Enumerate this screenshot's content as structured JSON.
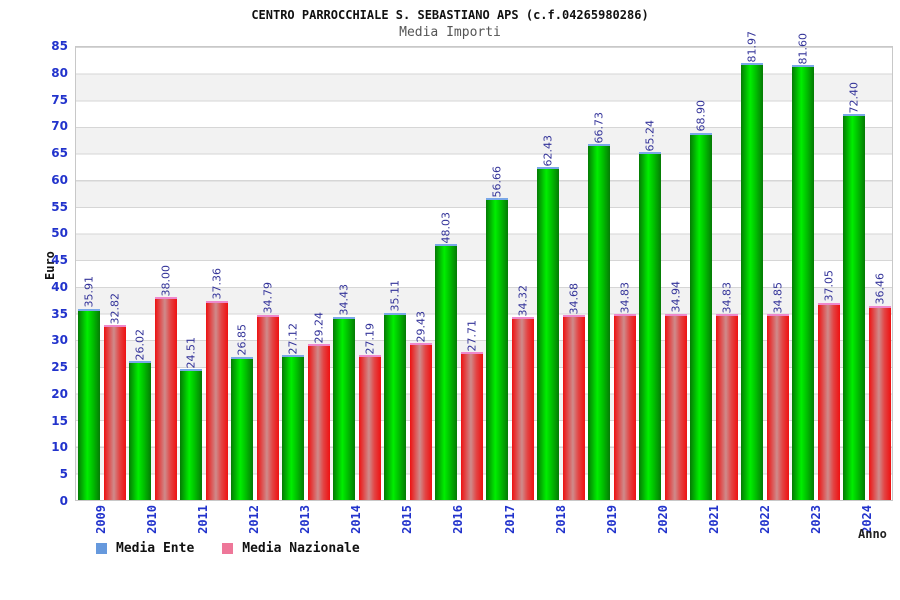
{
  "header": {
    "title": "CENTRO PARROCCHIALE S. SEBASTIANO APS (c.f.04265980286)",
    "subtitle": "Media Importi"
  },
  "chart_data": {
    "type": "bar",
    "title": "Media Importi",
    "categories": [
      "2009",
      "2010",
      "2011",
      "2012",
      "2013",
      "2014",
      "2015",
      "2016",
      "2017",
      "2018",
      "2019",
      "2020",
      "2021",
      "2022",
      "2023",
      "2024"
    ],
    "series": [
      {
        "name": "Media Ente",
        "values": [
          35.91,
          26.02,
          24.51,
          26.85,
          27.12,
          34.43,
          35.11,
          48.03,
          56.66,
          62.43,
          66.73,
          65.24,
          68.9,
          81.97,
          81.6,
          72.4
        ],
        "labels": [
          "35.91",
          "26.02",
          "24.51",
          "26.85",
          "27.12",
          "34.43",
          "35.11",
          "48.03",
          "56.66",
          "62.43",
          "66.73",
          "65.24",
          "68.90",
          "81.97",
          "81.60",
          "72.40"
        ]
      },
      {
        "name": "Media Nazionale",
        "values": [
          32.82,
          38.0,
          37.36,
          34.79,
          29.24,
          27.19,
          29.43,
          27.71,
          34.32,
          34.68,
          34.83,
          34.94,
          34.83,
          34.85,
          37.05,
          36.46
        ],
        "labels": [
          "32.82",
          "38.00",
          "37.36",
          "34.79",
          "29.24",
          "27.19",
          "29.43",
          "27.71",
          "34.32",
          "34.68",
          "34.83",
          "34.94",
          "34.83",
          "34.85",
          "37.05",
          "36.46"
        ]
      }
    ],
    "xlabel": "Anno",
    "ylabel": "Euro",
    "ylim": [
      0,
      85
    ],
    "ytick_step": 5,
    "grid": "horizontal-bands",
    "legend_position": "bottom-left"
  },
  "colors": {
    "tick_label": "#2233cc",
    "value_label": "#333399",
    "title": "#111111",
    "subtitle": "#555555",
    "band": "#f2f2f2",
    "gridline": "#d6d6d6",
    "plot_border": "#c8c8c8",
    "ente_bar_edge": "#057a05",
    "ente_bar_center": "#00ee00",
    "ente_bar_cap": "#7aa8e8",
    "nazionale_bar_edge": "#ee1111",
    "nazionale_bar_center": "#cf8b8b",
    "nazionale_bar_cap": "#ee88cc",
    "legend_ente_swatch": "#6699dd",
    "legend_nazionale_swatch": "#ee7799"
  }
}
